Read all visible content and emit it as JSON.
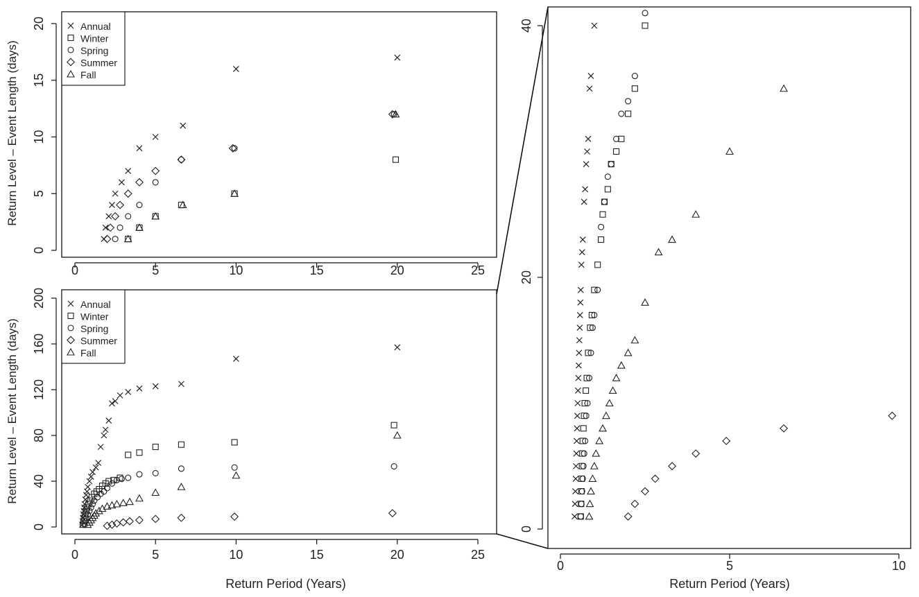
{
  "chart_data": [
    {
      "type": "scatter",
      "id": "top-left",
      "xlabel": "",
      "ylabel": "Return Level – Event Length (days)",
      "xlim": [
        0,
        26
      ],
      "ylim": [
        0,
        20
      ],
      "xticks": [
        "0",
        "5",
        "10",
        "15",
        "20",
        "25"
      ],
      "yticks": [
        "0",
        "5",
        "10",
        "15",
        "20"
      ],
      "legend": {
        "placement": "top-left",
        "entries": [
          "Annual",
          "Winter",
          "Spring",
          "Summer",
          "Fall"
        ]
      },
      "series": [
        {
          "name": "Annual",
          "marker": "x",
          "points": [
            [
              1.8,
              1
            ],
            [
              1.9,
              2
            ],
            [
              2.1,
              3
            ],
            [
              2.3,
              4
            ],
            [
              2.5,
              5
            ],
            [
              2.9,
              6
            ],
            [
              3.3,
              7
            ],
            [
              4.0,
              9
            ],
            [
              5.0,
              10
            ],
            [
              6.7,
              11
            ],
            [
              10.0,
              16
            ],
            [
              20.0,
              17
            ]
          ]
        },
        {
          "name": "Winter",
          "marker": "square",
          "points": [
            [
              3.3,
              1
            ],
            [
              4.0,
              2
            ],
            [
              5.0,
              3
            ],
            [
              6.6,
              4
            ],
            [
              9.9,
              5
            ],
            [
              19.9,
              8
            ]
          ]
        },
        {
          "name": "Spring",
          "marker": "circle",
          "points": [
            [
              2.5,
              1
            ],
            [
              2.8,
              2
            ],
            [
              3.3,
              3
            ],
            [
              4.0,
              4
            ],
            [
              5.0,
              6
            ],
            [
              6.6,
              8
            ],
            [
              9.9,
              9
            ],
            [
              19.8,
              12
            ]
          ]
        },
        {
          "name": "Summer",
          "marker": "diamond",
          "points": [
            [
              2.0,
              1
            ],
            [
              2.2,
              2
            ],
            [
              2.5,
              3
            ],
            [
              2.8,
              4
            ],
            [
              3.3,
              5
            ],
            [
              4.0,
              6
            ],
            [
              5.0,
              7
            ],
            [
              6.6,
              8
            ],
            [
              9.8,
              9
            ],
            [
              19.7,
              12
            ]
          ]
        },
        {
          "name": "Fall",
          "marker": "triangle",
          "points": [
            [
              3.3,
              1
            ],
            [
              4.0,
              2
            ],
            [
              5.0,
              3
            ],
            [
              6.7,
              4
            ],
            [
              9.9,
              5
            ],
            [
              19.9,
              12
            ]
          ]
        }
      ]
    },
    {
      "type": "scatter",
      "id": "bottom-left",
      "xlabel": "Return Period (Years)",
      "ylabel": "Return Level – Event Length (days)",
      "xlim": [
        0,
        26
      ],
      "ylim": [
        0,
        205
      ],
      "xticks": [
        "0",
        "5",
        "10",
        "15",
        "20",
        "25"
      ],
      "yticks": [
        "0",
        "40",
        "80",
        "120",
        "160",
        "200"
      ],
      "legend": {
        "placement": "top-left",
        "entries": [
          "Annual",
          "Winter",
          "Spring",
          "Summer",
          "Fall"
        ]
      },
      "series": [
        {
          "name": "Annual",
          "marker": "x",
          "points": [
            [
              0.45,
              2
            ],
            [
              0.48,
              5
            ],
            [
              0.5,
              8
            ],
            [
              0.52,
              11
            ],
            [
              0.55,
              14
            ],
            [
              0.58,
              17
            ],
            [
              0.6,
              20
            ],
            [
              0.65,
              24
            ],
            [
              0.7,
              28
            ],
            [
              0.75,
              31
            ],
            [
              0.8,
              35
            ],
            [
              0.9,
              40
            ],
            [
              1.0,
              44
            ],
            [
              1.1,
              48
            ],
            [
              1.3,
              52
            ],
            [
              1.45,
              56
            ],
            [
              1.6,
              70
            ],
            [
              1.8,
              80
            ],
            [
              1.9,
              85
            ],
            [
              2.1,
              93
            ],
            [
              2.3,
              108
            ],
            [
              2.5,
              110
            ],
            [
              2.8,
              115
            ],
            [
              3.3,
              118
            ],
            [
              4.0,
              121
            ],
            [
              5.0,
              123
            ],
            [
              6.6,
              125
            ],
            [
              10.0,
              147
            ],
            [
              20.0,
              157
            ]
          ]
        },
        {
          "name": "Winter",
          "marker": "square",
          "points": [
            [
              0.5,
              2
            ],
            [
              0.55,
              5
            ],
            [
              0.6,
              8
            ],
            [
              0.65,
              11
            ],
            [
              0.7,
              14
            ],
            [
              0.75,
              17
            ],
            [
              0.85,
              20
            ],
            [
              0.95,
              23
            ],
            [
              1.05,
              26
            ],
            [
              1.2,
              29
            ],
            [
              1.35,
              31
            ],
            [
              1.5,
              33
            ],
            [
              1.7,
              36
            ],
            [
              1.9,
              38
            ],
            [
              2.1,
              40
            ],
            [
              2.4,
              41
            ],
            [
              2.8,
              43
            ],
            [
              3.3,
              63
            ],
            [
              4.0,
              65
            ],
            [
              5.0,
              70
            ],
            [
              6.6,
              72
            ],
            [
              9.9,
              74
            ],
            [
              19.8,
              89
            ]
          ]
        },
        {
          "name": "Spring",
          "marker": "circle",
          "points": [
            [
              0.6,
              2
            ],
            [
              0.65,
              5
            ],
            [
              0.7,
              8
            ],
            [
              0.8,
              11
            ],
            [
              0.9,
              14
            ],
            [
              1.0,
              17
            ],
            [
              1.1,
              20
            ],
            [
              1.2,
              23
            ],
            [
              1.4,
              26
            ],
            [
              1.6,
              29
            ],
            [
              1.8,
              31
            ],
            [
              2.0,
              34
            ],
            [
              2.3,
              38
            ],
            [
              2.6,
              41
            ],
            [
              2.9,
              42
            ],
            [
              3.3,
              43
            ],
            [
              4.0,
              46
            ],
            [
              5.0,
              47
            ],
            [
              6.6,
              51
            ],
            [
              9.9,
              52
            ],
            [
              19.8,
              53
            ]
          ]
        },
        {
          "name": "Summer",
          "marker": "diamond",
          "points": [
            [
              2.0,
              1
            ],
            [
              2.3,
              2
            ],
            [
              2.6,
              3
            ],
            [
              3.0,
              4
            ],
            [
              3.4,
              5
            ],
            [
              4.0,
              6
            ],
            [
              5.0,
              7
            ],
            [
              6.6,
              8
            ],
            [
              9.9,
              9
            ],
            [
              19.7,
              12
            ]
          ]
        },
        {
          "name": "Fall",
          "marker": "triangle",
          "points": [
            [
              0.8,
              2
            ],
            [
              0.9,
              4
            ],
            [
              1.0,
              6
            ],
            [
              1.1,
              8
            ],
            [
              1.2,
              10
            ],
            [
              1.3,
              12
            ],
            [
              1.5,
              14
            ],
            [
              1.7,
              16
            ],
            [
              2.0,
              18
            ],
            [
              2.3,
              19
            ],
            [
              2.6,
              20
            ],
            [
              3.0,
              21
            ],
            [
              3.4,
              22
            ],
            [
              4.0,
              25
            ],
            [
              5.0,
              30
            ],
            [
              6.6,
              35
            ],
            [
              10.0,
              45
            ],
            [
              20.0,
              80
            ]
          ]
        }
      ]
    },
    {
      "type": "scatter",
      "id": "right-zoom",
      "xlabel": "Return Period (Years)",
      "ylabel": "",
      "xlim": [
        -0.4,
        10.4
      ],
      "ylim": [
        -0.5,
        41.5
      ],
      "xticks": [
        "0",
        "5",
        "10"
      ],
      "yticks": [
        "0",
        "20",
        "40"
      ],
      "series": [
        {
          "name": "Annual",
          "marker": "x",
          "points": [
            [
              0.42,
              1
            ],
            [
              0.43,
              2
            ],
            [
              0.44,
              3
            ],
            [
              0.45,
              4
            ],
            [
              0.46,
              5
            ],
            [
              0.47,
              6
            ],
            [
              0.48,
              7
            ],
            [
              0.49,
              8
            ],
            [
              0.5,
              9
            ],
            [
              0.51,
              10
            ],
            [
              0.52,
              11
            ],
            [
              0.53,
              12
            ],
            [
              0.54,
              13
            ],
            [
              0.55,
              14
            ],
            [
              0.56,
              15
            ],
            [
              0.57,
              16
            ],
            [
              0.58,
              17
            ],
            [
              0.59,
              18
            ],
            [
              0.6,
              19
            ],
            [
              0.62,
              21
            ],
            [
              0.64,
              22
            ],
            [
              0.66,
              23
            ],
            [
              0.7,
              26
            ],
            [
              0.73,
              27
            ],
            [
              0.76,
              29
            ],
            [
              0.79,
              30
            ],
            [
              0.82,
              31
            ],
            [
              0.86,
              35
            ],
            [
              0.9,
              36
            ],
            [
              1.0,
              40
            ]
          ]
        },
        {
          "name": "Winter",
          "marker": "square",
          "points": [
            [
              0.6,
              1
            ],
            [
              0.61,
              2
            ],
            [
              0.62,
              3
            ],
            [
              0.63,
              4
            ],
            [
              0.64,
              5
            ],
            [
              0.65,
              6
            ],
            [
              0.66,
              7
            ],
            [
              0.68,
              8
            ],
            [
              0.7,
              9
            ],
            [
              0.72,
              10
            ],
            [
              0.75,
              11
            ],
            [
              0.78,
              12
            ],
            [
              0.82,
              14
            ],
            [
              0.88,
              16
            ],
            [
              0.93,
              17
            ],
            [
              1.0,
              19
            ],
            [
              1.1,
              21
            ],
            [
              1.2,
              23
            ],
            [
              1.25,
              25
            ],
            [
              1.3,
              26
            ],
            [
              1.4,
              27
            ],
            [
              1.5,
              29
            ],
            [
              1.65,
              30
            ],
            [
              1.8,
              31
            ],
            [
              2.0,
              33
            ],
            [
              2.2,
              35
            ],
            [
              2.5,
              40
            ]
          ]
        },
        {
          "name": "Spring",
          "marker": "circle",
          "points": [
            [
              0.6,
              1
            ],
            [
              0.62,
              2
            ],
            [
              0.64,
              3
            ],
            [
              0.66,
              4
            ],
            [
              0.68,
              5
            ],
            [
              0.7,
              6
            ],
            [
              0.73,
              7
            ],
            [
              0.76,
              9
            ],
            [
              0.8,
              10
            ],
            [
              0.85,
              12
            ],
            [
              0.9,
              14
            ],
            [
              0.95,
              16
            ],
            [
              1.0,
              17
            ],
            [
              1.1,
              19
            ],
            [
              1.2,
              24
            ],
            [
              1.3,
              26
            ],
            [
              1.4,
              28
            ],
            [
              1.5,
              29
            ],
            [
              1.65,
              31
            ],
            [
              1.8,
              33
            ],
            [
              2.0,
              34
            ],
            [
              2.2,
              36
            ],
            [
              2.5,
              41
            ]
          ]
        },
        {
          "name": "Summer",
          "marker": "diamond",
          "points": [
            [
              2.0,
              1
            ],
            [
              2.2,
              2
            ],
            [
              2.5,
              3
            ],
            [
              2.8,
              4
            ],
            [
              3.3,
              5
            ],
            [
              4.0,
              6
            ],
            [
              4.9,
              7
            ],
            [
              6.6,
              8
            ],
            [
              9.8,
              9
            ]
          ]
        },
        {
          "name": "Fall",
          "marker": "triangle",
          "points": [
            [
              0.85,
              1
            ],
            [
              0.87,
              2
            ],
            [
              0.9,
              3
            ],
            [
              0.95,
              4
            ],
            [
              1.0,
              5
            ],
            [
              1.05,
              6
            ],
            [
              1.15,
              7
            ],
            [
              1.25,
              8
            ],
            [
              1.35,
              9
            ],
            [
              1.45,
              10
            ],
            [
              1.55,
              11
            ],
            [
              1.65,
              12
            ],
            [
              1.8,
              13
            ],
            [
              2.0,
              14
            ],
            [
              2.2,
              15
            ],
            [
              2.5,
              18
            ],
            [
              2.9,
              22
            ],
            [
              3.3,
              23
            ],
            [
              4.0,
              25
            ],
            [
              5.0,
              30
            ],
            [
              6.6,
              35
            ]
          ]
        }
      ]
    }
  ]
}
